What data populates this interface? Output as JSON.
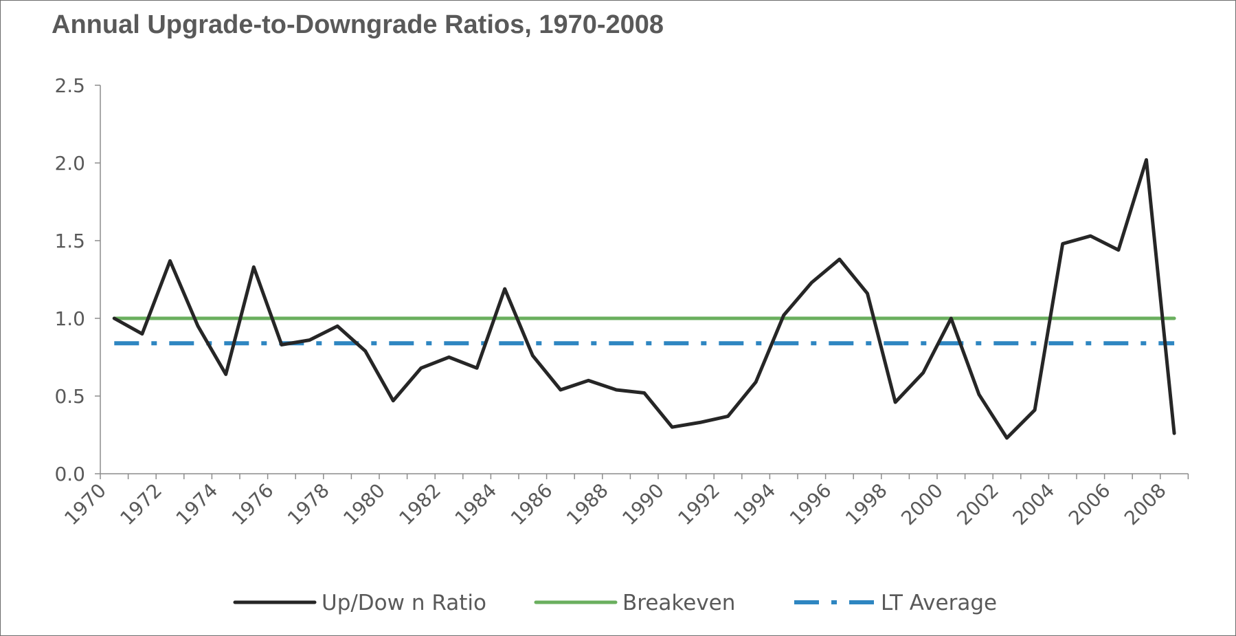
{
  "chart_data": {
    "type": "line",
    "title": "Annual Upgrade-to-Downgrade Ratios, 1970-2008",
    "xlabel": "",
    "ylabel": "",
    "x_range": [
      1970,
      2008
    ],
    "ylim": [
      0,
      2.5
    ],
    "y_ticks": [
      "0.0",
      "0.5",
      "1.0",
      "1.5",
      "2.0",
      "2.5"
    ],
    "x_tick_labels": [
      "1970",
      "1972",
      "1974",
      "1976",
      "1978",
      "1980",
      "1982",
      "1984",
      "1986",
      "1988",
      "1990",
      "1992",
      "1994",
      "1996",
      "1998",
      "2000",
      "2002",
      "2004",
      "2006",
      "2008"
    ],
    "grid": false,
    "legend_position": "bottom",
    "series": [
      {
        "name": "Up/Dow n Ratio",
        "style": "solid",
        "color": "#262626",
        "x": [
          1970,
          1971,
          1972,
          1973,
          1974,
          1975,
          1976,
          1977,
          1978,
          1979,
          1980,
          1981,
          1982,
          1983,
          1984,
          1985,
          1986,
          1987,
          1988,
          1989,
          1990,
          1991,
          1992,
          1993,
          1994,
          1995,
          1996,
          1997,
          1998,
          1999,
          2000,
          2001,
          2002,
          2003,
          2004,
          2005,
          2006,
          2007,
          2008
        ],
        "values": [
          1.0,
          0.9,
          1.37,
          0.95,
          0.64,
          1.33,
          0.83,
          0.86,
          0.95,
          0.79,
          0.47,
          0.68,
          0.75,
          0.68,
          1.19,
          0.76,
          0.54,
          0.6,
          0.54,
          0.52,
          0.3,
          0.33,
          0.37,
          0.59,
          1.02,
          1.23,
          1.38,
          1.16,
          0.46,
          0.65,
          1.0,
          0.51,
          0.23,
          0.41,
          1.48,
          1.53,
          1.44,
          2.02,
          0.26
        ]
      },
      {
        "name": "Breakeven",
        "style": "solid",
        "color": "#6aaf5e",
        "x": [
          1970,
          2008
        ],
        "values": [
          1.0,
          1.0
        ]
      },
      {
        "name": "LT Average",
        "style": "dash-dot",
        "color": "#2e86c1",
        "x": [
          1970,
          2008
        ],
        "values": [
          0.84,
          0.84
        ]
      }
    ]
  }
}
